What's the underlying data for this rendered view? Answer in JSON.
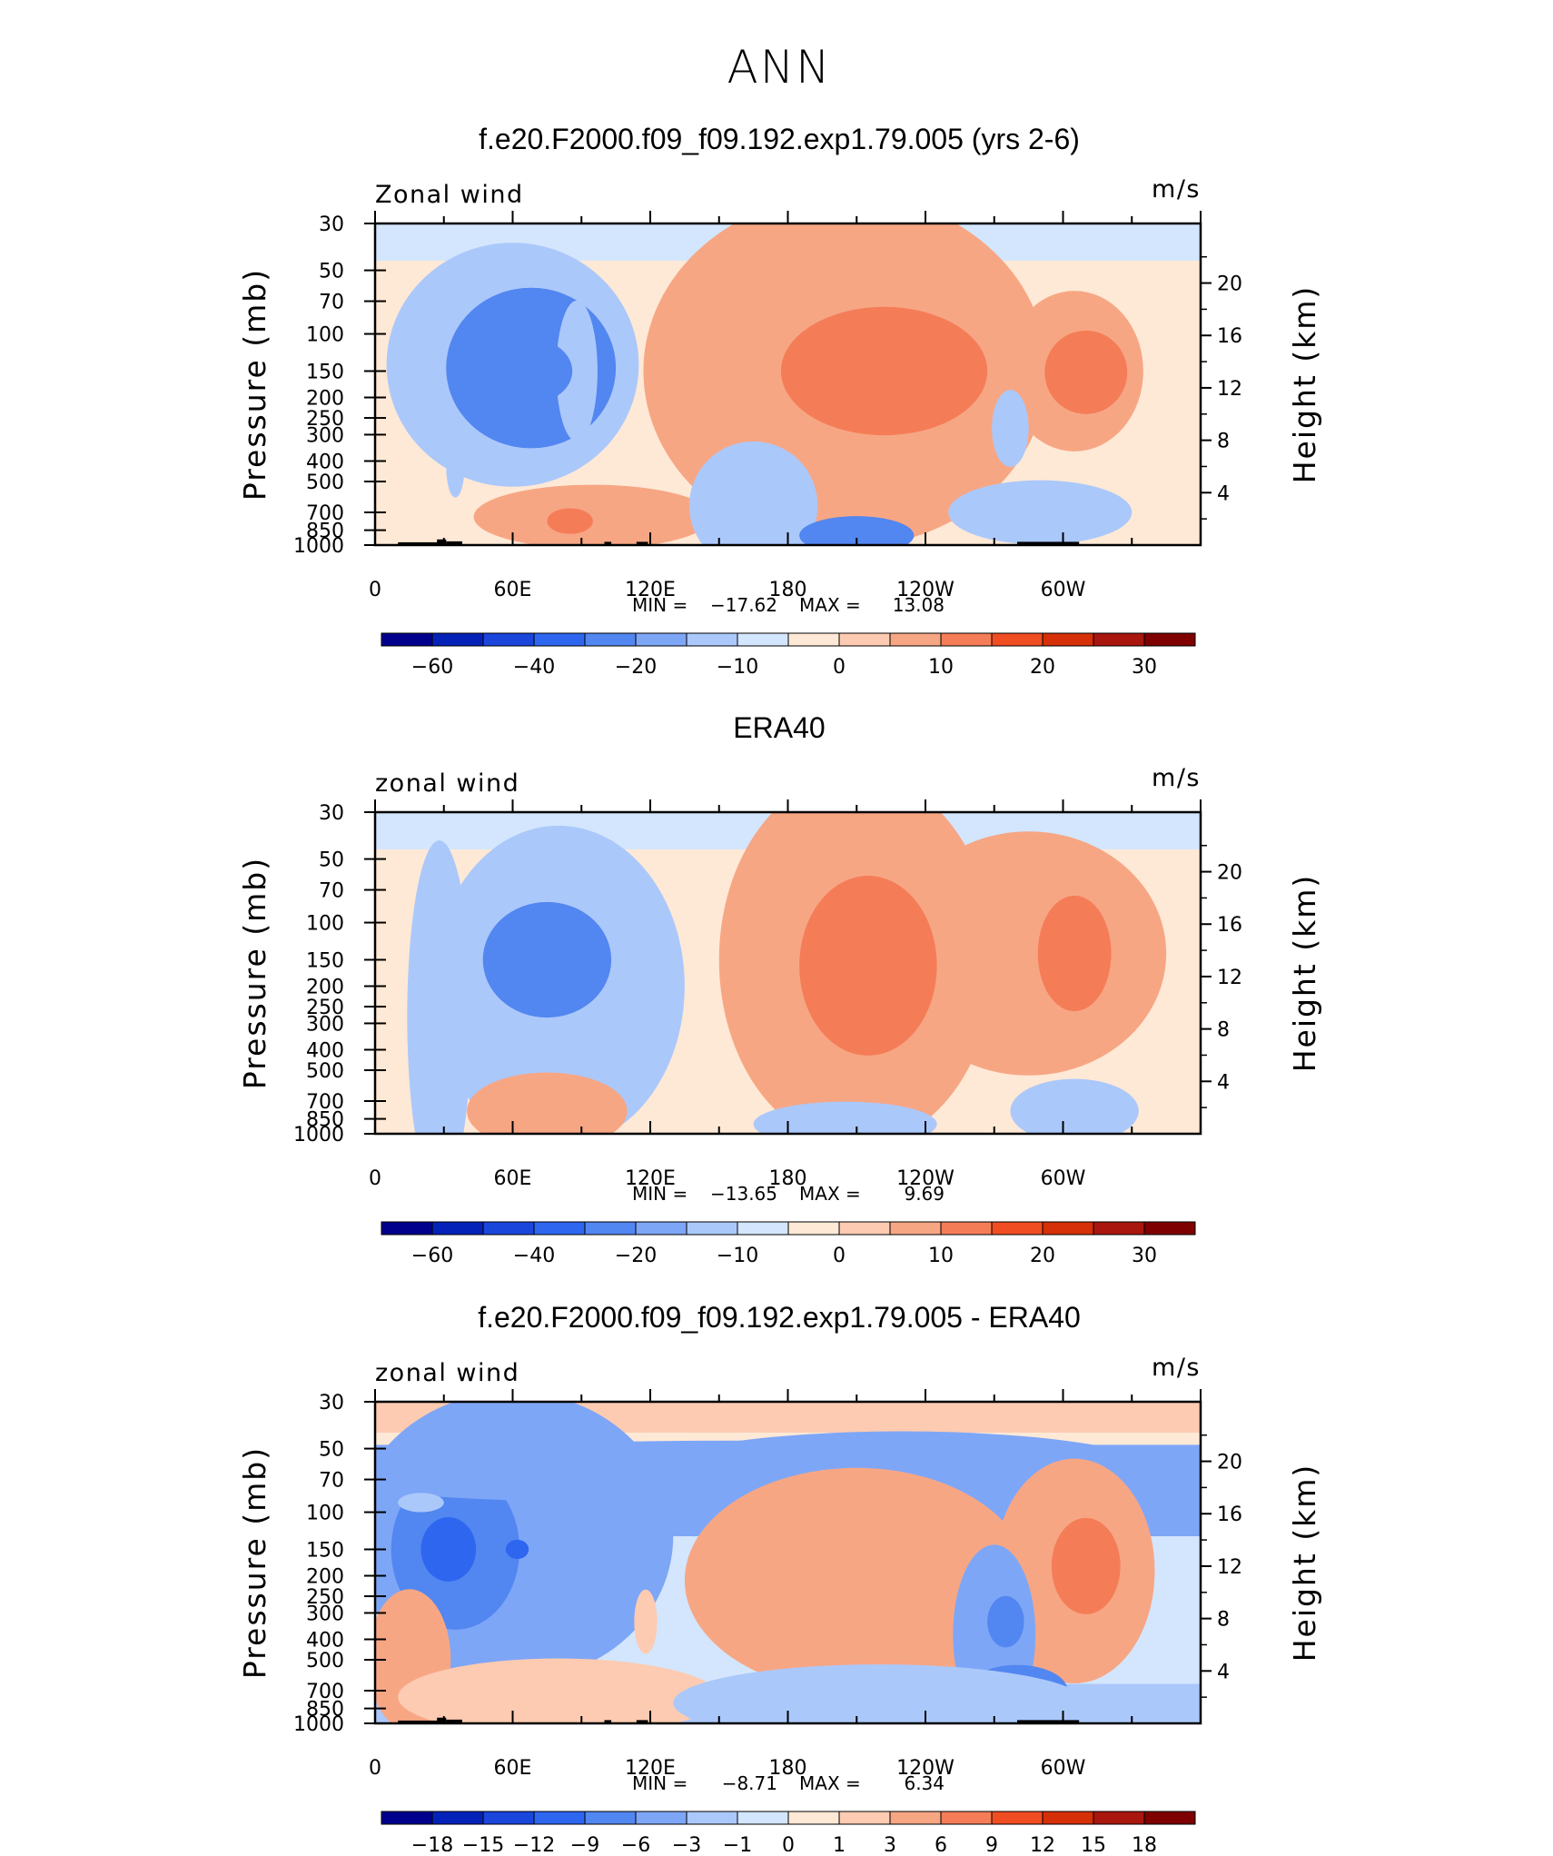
{
  "title": "ANN",
  "colormap_main": [
    "#00008c",
    "#0522b8",
    "#1a46dc",
    "#2e66f0",
    "#5286f0",
    "#7ea6f7",
    "#abc8fb",
    "#d3e6fd",
    "#fee9d6",
    "#fdcbb1",
    "#f7a684",
    "#f47d57",
    "#f04d22",
    "#d53008",
    "#a8160e",
    "#7e0000"
  ],
  "colormap_diff": [
    "#00008c",
    "#0522b8",
    "#1a46dc",
    "#2e66f0",
    "#5286f0",
    "#7ea6f7",
    "#abc8fb",
    "#d3e6fd",
    "#fee9d6",
    "#fdcbb1",
    "#f7a684",
    "#f47d57",
    "#f04d22",
    "#d53008",
    "#a8160e",
    "#7e0000"
  ],
  "chart_data": [
    {
      "type": "heatmap",
      "title": "f.e20.F2000.f09_f09.192.exp1.79.005 (yrs 2-6)",
      "left_label": "Zonal wind",
      "right_label": "m/s",
      "ylabel": "Pressure (mb)",
      "ylabel_right": "Height (km)",
      "x_ticks": [
        "0",
        "60E",
        "120E",
        "180",
        "120W",
        "60W"
      ],
      "y_ticks": [
        "30",
        "50",
        "70",
        "100",
        "150",
        "200",
        "250",
        "300",
        "400",
        "500",
        "700",
        "850",
        "1000"
      ],
      "height_ticks": [
        "20",
        "16",
        "12",
        "8",
        "4"
      ],
      "min_label": "MIN =",
      "min_value": "−17.62",
      "max_label": "MAX =",
      "max_value": "13.08",
      "colorbar_labels": [
        "−60",
        "−40",
        "−20",
        "−10",
        "0",
        "10",
        "20",
        "30"
      ],
      "blobs": [
        {
          "lon": 35,
          "p": 425,
          "rx": 4,
          "ry": 170,
          "level": -10
        },
        {
          "lon": 60,
          "p": 140,
          "rx": 55,
          "ry": 0.38,
          "level": -10
        },
        {
          "lon": 68,
          "p": 145,
          "rx": 37,
          "ry": 0.25,
          "level": -20
        },
        {
          "lon": 88,
          "p": 150,
          "rx": 9,
          "ry": 0.22,
          "level": -10
        },
        {
          "lon": 68,
          "p": 150,
          "rx": 18,
          "ry": 0.1,
          "level": -20
        },
        {
          "lon": 205,
          "p": 150,
          "rx": 88,
          "ry": 0.55,
          "level": 5
        },
        {
          "lon": 220,
          "p": 150,
          "rx": 72,
          "ry": 0.38,
          "level": 5
        },
        {
          "lon": 222,
          "p": 150,
          "rx": 45,
          "ry": 0.2,
          "level": 10
        },
        {
          "lon": 305,
          "p": 150,
          "rx": 30,
          "ry": 0.25,
          "level": 5
        },
        {
          "lon": 310,
          "p": 152,
          "rx": 18,
          "ry": 0.13,
          "level": 10
        },
        {
          "lon": 277,
          "p": 280,
          "rx": 8,
          "ry": 0.12,
          "level": -10
        },
        {
          "lon": 290,
          "p": 700,
          "rx": 40,
          "ry": 0.1,
          "level": -10
        },
        {
          "lon": 95,
          "p": 735,
          "rx": 52,
          "ry": 0.1,
          "level": 5
        },
        {
          "lon": 85,
          "p": 770,
          "rx": 10,
          "ry": 0.04,
          "level": 10
        },
        {
          "lon": 165,
          "p": 650,
          "rx": 28,
          "ry": 0.2,
          "level": -10
        },
        {
          "lon": 210,
          "p": 900,
          "rx": 25,
          "ry": 0.06,
          "level": -20
        }
      ]
    },
    {
      "type": "heatmap",
      "title": "ERA40",
      "left_label": "zonal wind",
      "right_label": "m/s",
      "ylabel": "Pressure (mb)",
      "ylabel_right": "Height (km)",
      "x_ticks": [
        "0",
        "60E",
        "120E",
        "180",
        "120W",
        "60W"
      ],
      "y_ticks": [
        "30",
        "50",
        "70",
        "100",
        "150",
        "200",
        "250",
        "300",
        "400",
        "500",
        "700",
        "850",
        "1000"
      ],
      "height_ticks": [
        "20",
        "16",
        "12",
        "8",
        "4"
      ],
      "min_label": "MIN =",
      "min_value": "−13.65",
      "max_label": "MAX =",
      "max_value": "9.69",
      "colorbar_labels": [
        "−60",
        "−40",
        "−20",
        "−10",
        "0",
        "10",
        "20",
        "30"
      ],
      "blobs": [
        {
          "lon": 28,
          "p": 280,
          "rx": 14,
          "ry": 0.55,
          "level": -10
        },
        {
          "lon": 80,
          "p": 200,
          "rx": 55,
          "ry": 0.5,
          "level": -10
        },
        {
          "lon": 75,
          "p": 150,
          "rx": 28,
          "ry": 0.18,
          "level": -20
        },
        {
          "lon": 210,
          "p": 150,
          "rx": 60,
          "ry": 0.58,
          "level": 5
        },
        {
          "lon": 285,
          "p": 140,
          "rx": 60,
          "ry": 0.38,
          "level": 5
        },
        {
          "lon": 215,
          "p": 160,
          "rx": 30,
          "ry": 0.28,
          "level": 10
        },
        {
          "lon": 305,
          "p": 140,
          "rx": 16,
          "ry": 0.18,
          "level": 10
        },
        {
          "lon": 75,
          "p": 780,
          "rx": 35,
          "ry": 0.12,
          "level": 5
        },
        {
          "lon": 205,
          "p": 900,
          "rx": 40,
          "ry": 0.07,
          "level": -10
        },
        {
          "lon": 305,
          "p": 780,
          "rx": 28,
          "ry": 0.1,
          "level": -10
        }
      ]
    },
    {
      "type": "heatmap",
      "title": "f.e20.F2000.f09_f09.192.exp1.79.005 - ERA40",
      "left_label": "zonal wind",
      "right_label": "m/s",
      "ylabel": "Pressure (mb)",
      "ylabel_right": "Height (km)",
      "x_ticks": [
        "0",
        "60E",
        "120E",
        "180",
        "120W",
        "60W"
      ],
      "y_ticks": [
        "30",
        "50",
        "70",
        "100",
        "150",
        "200",
        "250",
        "300",
        "400",
        "500",
        "700",
        "850",
        "1000"
      ],
      "height_ticks": [
        "20",
        "16",
        "12",
        "8",
        "4"
      ],
      "min_label": "MIN =",
      "min_value": "−8.71",
      "max_label": "MAX =",
      "max_value": "6.34",
      "colorbar_labels": [
        "−18",
        "−15",
        "−12",
        "−9",
        "−6",
        "−3",
        "−1",
        "0",
        "1",
        "3",
        "6",
        "9",
        "12",
        "15",
        "18"
      ],
      "blobs": [
        {
          "lon": 60,
          "p": 130,
          "rx": 70,
          "ry": 0.45,
          "level": -3
        },
        {
          "lon": 35,
          "p": 150,
          "rx": 28,
          "ry": 0.25,
          "level": -6
        },
        {
          "lon": 32,
          "p": 150,
          "rx": 12,
          "ry": 0.1,
          "level": -9
        },
        {
          "lon": 62,
          "p": 150,
          "rx": 5,
          "ry": 0.03,
          "level": -9
        },
        {
          "lon": 230,
          "p": 70,
          "rx": 120,
          "ry": 0.15,
          "level": -3
        },
        {
          "lon": 160,
          "p": 65,
          "rx": 200,
          "ry": 0.1,
          "level": -3
        },
        {
          "lon": 210,
          "p": 210,
          "rx": 75,
          "ry": 0.35,
          "level": 3
        },
        {
          "lon": 305,
          "p": 190,
          "rx": 35,
          "ry": 0.35,
          "level": 3
        },
        {
          "lon": 310,
          "p": 180,
          "rx": 15,
          "ry": 0.15,
          "level": 6
        },
        {
          "lon": 270,
          "p": 380,
          "rx": 18,
          "ry": 0.28,
          "level": -3
        },
        {
          "lon": 275,
          "p": 330,
          "rx": 8,
          "ry": 0.08,
          "level": -6
        },
        {
          "lon": 15,
          "p": 500,
          "rx": 18,
          "ry": 0.22,
          "level": 3
        },
        {
          "lon": 118,
          "p": 330,
          "rx": 5,
          "ry": 0.1,
          "level": 1
        },
        {
          "lon": 80,
          "p": 750,
          "rx": 70,
          "ry": 0.12,
          "level": 1
        },
        {
          "lon": 280,
          "p": 700,
          "rx": 22,
          "ry": 0.08,
          "level": -6
        },
        {
          "lon": 220,
          "p": 800,
          "rx": 90,
          "ry": 0.12,
          "level": -1
        },
        {
          "lon": 20,
          "p": 90,
          "rx": 10,
          "ry": 0.03,
          "level": -1
        }
      ]
    }
  ]
}
